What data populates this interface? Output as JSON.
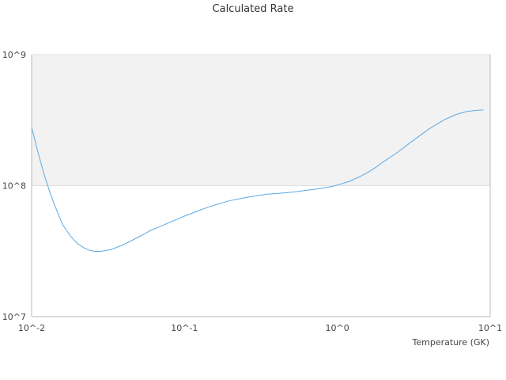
{
  "chart_data": {
    "type": "line",
    "title": "Calculated Rate",
    "xlabel": "Temperature (GK)",
    "ylabel": "",
    "x_scale": "log",
    "y_scale": "log",
    "xlim": [
      0.01,
      10
    ],
    "ylim": [
      10000000,
      1000000000
    ],
    "x_ticks": [
      "10^-2",
      "10^-1",
      "10^0",
      "10^1"
    ],
    "y_ticks": [
      "10^7",
      "10^8",
      "10^9"
    ],
    "shaded_band": [
      100000000,
      1000000000
    ],
    "colors": {
      "line": "#5aa9e6",
      "band": "#f2f2f2",
      "axis": "#bbbbbb"
    },
    "series": [
      {
        "x": [
          0.01,
          0.011,
          0.012,
          0.013,
          0.014,
          0.015,
          0.016,
          0.018,
          0.02,
          0.022,
          0.024,
          0.026,
          0.028,
          0.03,
          0.033,
          0.036,
          0.04,
          0.045,
          0.05,
          0.055,
          0.06,
          0.07,
          0.08,
          0.09,
          0.1,
          0.12,
          0.14,
          0.16,
          0.18,
          0.2,
          0.25,
          0.3,
          0.35,
          0.4,
          0.5,
          0.6,
          0.7,
          0.8,
          0.9,
          1.0,
          1.2,
          1.4,
          1.6,
          1.8,
          2.0,
          2.5,
          3.0,
          3.5,
          4.0,
          5.0,
          6.0,
          7.0,
          8.0,
          9.0
        ],
        "y": [
          280000000,
          180000000,
          125000000,
          93000000,
          73000000,
          60000000,
          50000000,
          41000000,
          36000000,
          33500000,
          32000000,
          31500000,
          31500000,
          31800000,
          32500000,
          33800000,
          35500000,
          38000000,
          40500000,
          43000000,
          45500000,
          49000000,
          52500000,
          55500000,
          58500000,
          63500000,
          68000000,
          71500000,
          74500000,
          77000000,
          81000000,
          84000000,
          86000000,
          87000000,
          89000000,
          91500000,
          93500000,
          95500000,
          98000000,
          101000000,
          108000000,
          117000000,
          127000000,
          139000000,
          152000000,
          181000000,
          213000000,
          243000000,
          272000000,
          318000000,
          350000000,
          368000000,
          375000000,
          378000000
        ]
      }
    ]
  }
}
